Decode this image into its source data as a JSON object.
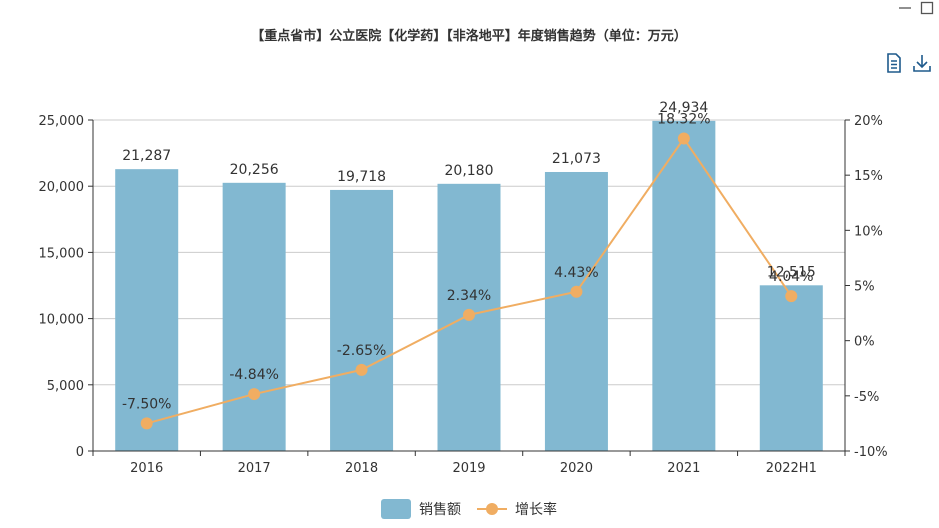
{
  "window": {
    "minimize_icon": "minimize-icon",
    "maximize_icon": "maximize-icon"
  },
  "toolbox": {
    "data_view_icon": "document-icon",
    "save_image_icon": "download-icon"
  },
  "colors": {
    "bar": "#82b8d1",
    "line": "#f0ad62",
    "axis": "#333333",
    "grid": "#cccccc",
    "toolbox": "#1e5a8c"
  },
  "chart_data": {
    "type": "bar",
    "title": "【重点省市】公立医院【化学药】【非洛地平】年度销售趋势（单位：万元）",
    "categories": [
      "2016",
      "2017",
      "2018",
      "2019",
      "2020",
      "2021",
      "2022H1"
    ],
    "series": [
      {
        "name": "销售额",
        "type": "bar",
        "axis": "left",
        "values": [
          21287,
          20256,
          19718,
          20180,
          21073,
          24934,
          12515
        ],
        "labels": [
          "21,287",
          "20,256",
          "19,718",
          "20,180",
          "21,073",
          "24,934",
          "12,515"
        ]
      },
      {
        "name": "增长率",
        "type": "line",
        "axis": "right",
        "values": [
          -7.5,
          -4.84,
          -2.65,
          2.34,
          4.43,
          18.32,
          4.04
        ],
        "labels": [
          "-7.50%",
          "-4.84%",
          "-2.65%",
          "2.34%",
          "4.43%",
          "18.32%",
          "4.04%"
        ]
      }
    ],
    "y_left": {
      "min": 0,
      "max": 25000,
      "ticks": [
        "0",
        "5,000",
        "10,000",
        "15,000",
        "20,000",
        "25,000"
      ]
    },
    "y_right": {
      "min": -10,
      "max": 20,
      "ticks": [
        "-10%",
        "-5%",
        "0%",
        "5%",
        "10%",
        "15%",
        "20%"
      ]
    },
    "grid": true,
    "legend": "bottom-center"
  }
}
